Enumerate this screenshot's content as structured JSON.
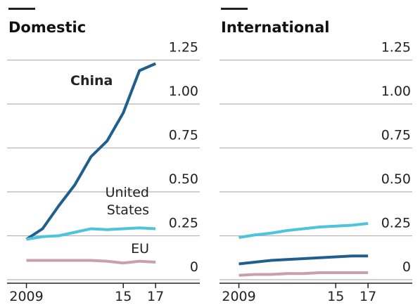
{
  "chart_data": [
    {
      "type": "line",
      "title": "Domestic",
      "x": [
        2009,
        2010,
        2011,
        2012,
        2013,
        2014,
        2015,
        2016,
        2017
      ],
      "series": [
        {
          "name": "China",
          "color": "#1f5f8e",
          "values": [
            0.23,
            0.29,
            0.42,
            0.54,
            0.7,
            0.79,
            0.95,
            1.19,
            1.23
          ]
        },
        {
          "name": "United States",
          "color": "#4ec3dc",
          "values": [
            0.23,
            0.245,
            0.25,
            0.27,
            0.29,
            0.285,
            0.29,
            0.295,
            0.29
          ]
        },
        {
          "name": "EU",
          "color": "#c9a0a8",
          "values": [
            0.11,
            0.11,
            0.11,
            0.11,
            0.11,
            0.105,
            0.095,
            0.105,
            0.1
          ]
        }
      ],
      "xlim": [
        2007.8,
        2020
      ],
      "xticks": [
        2009,
        {
          "value": 2015,
          "label": "15"
        },
        {
          "value": 2017,
          "label": "17"
        }
      ],
      "ylim": [
        0,
        1.35
      ],
      "yticks": [
        0,
        0.25,
        {
          "value": 0.5,
          "label": "0.50"
        },
        0.75,
        {
          "value": 1,
          "label": "1.00"
        },
        1.25
      ],
      "grid": true
    },
    {
      "type": "line",
      "title": "International",
      "x": [
        2009,
        2010,
        2011,
        2012,
        2013,
        2014,
        2015,
        2016,
        2017
      ],
      "series": [
        {
          "color": "#4ec3dc",
          "values": [
            0.24,
            0.255,
            0.265,
            0.28,
            0.29,
            0.3,
            0.305,
            0.31,
            0.32
          ]
        },
        {
          "color": "#1f5f8e",
          "values": [
            0.09,
            0.1,
            0.11,
            0.115,
            0.12,
            0.125,
            0.13,
            0.135,
            0.135
          ]
        },
        {
          "color": "#c9a0a8",
          "values": [
            0.025,
            0.03,
            0.03,
            0.035,
            0.035,
            0.04,
            0.04,
            0.04,
            0.04
          ]
        }
      ],
      "xlim": [
        2007.8,
        2020
      ],
      "xticks": [
        2009,
        {
          "value": 2015,
          "label": "15"
        },
        {
          "value": 2017,
          "label": "17"
        }
      ],
      "ylim": [
        0,
        1.35
      ],
      "yticks": [
        0,
        0.25,
        {
          "value": 0.5,
          "label": "0.50"
        },
        0.75,
        {
          "value": 1,
          "label": "1.00"
        },
        1.25
      ],
      "grid": true
    }
  ]
}
